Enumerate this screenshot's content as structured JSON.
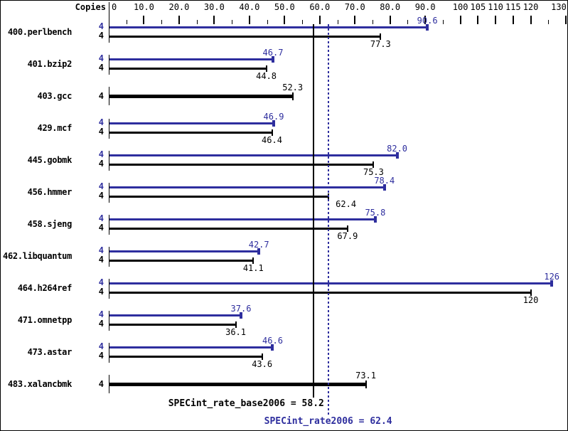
{
  "header": {
    "copies_label": "Copies"
  },
  "axis": {
    "unit_min": 0,
    "unit_max": 130,
    "labels": [
      {
        "text": "0",
        "value": 0
      },
      {
        "text": "10.0",
        "value": 10
      },
      {
        "text": "20.0",
        "value": 20
      },
      {
        "text": "30.0",
        "value": 30
      },
      {
        "text": "40.0",
        "value": 40
      },
      {
        "text": "50.0",
        "value": 50
      },
      {
        "text": "60.0",
        "value": 60
      },
      {
        "text": "70.0",
        "value": 70
      },
      {
        "text": "80.0",
        "value": 80
      },
      {
        "text": "90.0",
        "value": 90
      },
      {
        "text": "100",
        "value": 100
      },
      {
        "text": "105",
        "value": 105
      },
      {
        "text": "110",
        "value": 110
      },
      {
        "text": "115",
        "value": 115
      },
      {
        "text": "120",
        "value": 120
      },
      {
        "text": "130",
        "value": 130
      }
    ],
    "major_ticks": [
      10,
      20,
      30,
      40,
      50,
      60,
      70,
      80,
      90,
      100,
      105,
      110,
      115,
      120,
      130
    ],
    "minor_ticks": [
      5,
      15,
      25,
      35,
      45,
      55,
      65,
      75,
      85,
      95,
      125
    ]
  },
  "chart_data": {
    "type": "bar",
    "orientation": "horizontal",
    "xlim": [
      0,
      130
    ],
    "grid": false,
    "legend_position": "none",
    "categories": [
      "400.perlbench",
      "401.bzip2",
      "403.gcc",
      "429.mcf",
      "445.gobmk",
      "456.hmmer",
      "458.sjeng",
      "462.libquantum",
      "464.h264ref",
      "471.omnetpp",
      "473.astar",
      "483.xalancbmk"
    ],
    "series": [
      {
        "name": "peak",
        "values": [
          90.6,
          46.7,
          null,
          46.9,
          82.0,
          78.4,
          75.8,
          42.7,
          126,
          37.6,
          46.6,
          null
        ]
      },
      {
        "name": "base",
        "values": [
          77.3,
          44.8,
          52.3,
          46.4,
          75.3,
          62.4,
          67.9,
          41.1,
          120,
          36.1,
          43.6,
          73.1
        ]
      }
    ],
    "benchmarks": [
      {
        "name": "400.perlbench",
        "copies": 4,
        "peak": 90.6,
        "peak_label": "90.6",
        "base": 77.3,
        "base_label": "77.3",
        "single_bar": false
      },
      {
        "name": "401.bzip2",
        "copies": 4,
        "peak": 46.7,
        "peak_label": "46.7",
        "base": 44.8,
        "base_label": "44.8",
        "single_bar": false
      },
      {
        "name": "403.gcc",
        "copies": 4,
        "peak": null,
        "peak_label": "",
        "base": 52.3,
        "base_label": "52.3",
        "single_bar": true
      },
      {
        "name": "429.mcf",
        "copies": 4,
        "peak": 46.9,
        "peak_label": "46.9",
        "base": 46.4,
        "base_label": "46.4",
        "single_bar": false
      },
      {
        "name": "445.gobmk",
        "copies": 4,
        "peak": 82.0,
        "peak_label": "82.0",
        "base": 75.3,
        "base_label": "75.3",
        "single_bar": false
      },
      {
        "name": "456.hmmer",
        "copies": 4,
        "peak": 78.4,
        "peak_label": "78.4",
        "base": 62.4,
        "base_label": "62.4",
        "single_bar": false,
        "base_label_dx": 25
      },
      {
        "name": "458.sjeng",
        "copies": 4,
        "peak": 75.8,
        "peak_label": "75.8",
        "base": 67.9,
        "base_label": "67.9",
        "single_bar": false
      },
      {
        "name": "462.libquantum",
        "copies": 4,
        "peak": 42.7,
        "peak_label": "42.7",
        "base": 41.1,
        "base_label": "41.1",
        "single_bar": false
      },
      {
        "name": "464.h264ref",
        "copies": 4,
        "peak": 126,
        "peak_label": "126",
        "base": 120,
        "base_label": "120",
        "single_bar": false
      },
      {
        "name": "471.omnetpp",
        "copies": 4,
        "peak": 37.6,
        "peak_label": "37.6",
        "base": 36.1,
        "base_label": "36.1",
        "single_bar": false
      },
      {
        "name": "473.astar",
        "copies": 4,
        "peak": 46.6,
        "peak_label": "46.6",
        "base": 43.6,
        "base_label": "43.6",
        "single_bar": false
      },
      {
        "name": "483.xalancbmk",
        "copies": 4,
        "peak": null,
        "peak_label": "",
        "base": 73.1,
        "base_label": "73.1",
        "single_bar": true
      }
    ],
    "summary": {
      "base": {
        "text": "SPECint_rate_base2006 = 58.2",
        "value": 58.2
      },
      "peak": {
        "text": "SPECint_rate2006 = 62.4",
        "value": 62.4
      }
    }
  },
  "colors": {
    "peak_blue": "#2e2e9e",
    "base_black": "#000000",
    "background": "#ffffff",
    "border": "#000000"
  }
}
